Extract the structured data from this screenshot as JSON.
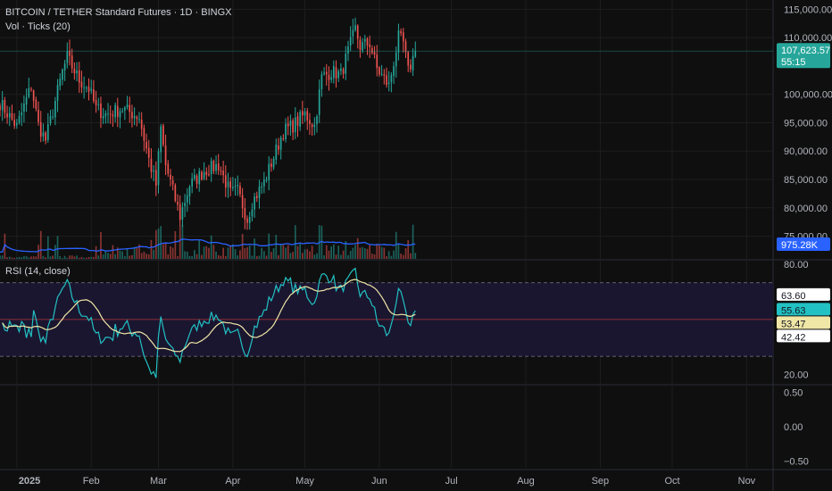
{
  "header": {
    "symbol_title": "BITCOIN / TETHER Standard Futures · 1D · BINGX",
    "volume_legend": "Vol · Ticks (20)",
    "rsi_legend": "RSI (14, close)"
  },
  "colors": {
    "background": "#0f0f0f",
    "up": "#26a69a",
    "down": "#ef5350",
    "volume_ma": "#2962ff",
    "rsi_line": "#22c1c3",
    "rsi_ma": "#f0e6a6",
    "rsi_band_fill": "#1a1630",
    "rsi_mid": "#b2373a",
    "grid": "#1e1e1e"
  },
  "chart_data": [
    {
      "type": "candlestick",
      "x_tick_labels": [
        "2025",
        "Feb",
        "Mar",
        "Apr",
        "May",
        "Jun",
        "Jul",
        "Aug",
        "Sep",
        "Oct",
        "Nov"
      ],
      "y_tick_labels": [
        "115,000.00",
        "110,000.00",
        "100,000.00",
        "95,000.00",
        "90,000.00",
        "85,000.00",
        "80,000.00",
        "75,000.00"
      ],
      "y_ticks": [
        115000,
        110000,
        100000,
        95000,
        90000,
        85000,
        80000,
        75000
      ],
      "ylim": [
        71000,
        116000
      ],
      "x_tick_dates": [
        "2025-01-01",
        "2025-02-01",
        "2025-03-01",
        "2025-04-01",
        "2025-05-01",
        "2025-06-01",
        "2025-07-01",
        "2025-08-01",
        "2025-09-01",
        "2025-10-01",
        "2025-11-01"
      ],
      "xlim": [
        "2024-12-25",
        "2025-11-12"
      ],
      "last_price": 107623.57,
      "last_price_label": "107,623.57",
      "countdown_label": "55:15",
      "close_path": [
        [
          "2024-12-25",
          98500
        ],
        [
          "2025-01-01",
          94300
        ],
        [
          "2025-01-07",
          101500
        ],
        [
          "2025-01-10",
          94600
        ],
        [
          "2025-01-13",
          91900
        ],
        [
          "2025-01-20",
          104000
        ],
        [
          "2025-01-22",
          106500
        ],
        [
          "2025-01-27",
          102500
        ],
        [
          "2025-01-31",
          101000
        ],
        [
          "2025-02-03",
          97500
        ],
        [
          "2025-02-07",
          96500
        ],
        [
          "2025-02-14",
          97500
        ],
        [
          "2025-02-21",
          96000
        ],
        [
          "2025-02-25",
          88500
        ],
        [
          "2025-02-28",
          84000
        ],
        [
          "2025-03-02",
          94000
        ],
        [
          "2025-03-04",
          87500
        ],
        [
          "2025-03-10",
          78500
        ],
        [
          "2025-03-14",
          84000
        ],
        [
          "2025-03-20",
          86500
        ],
        [
          "2025-03-26",
          87500
        ],
        [
          "2025-03-31",
          82500
        ],
        [
          "2025-04-03",
          83000
        ],
        [
          "2025-04-07",
          78000
        ],
        [
          "2025-04-09",
          81000
        ],
        [
          "2025-04-14",
          84500
        ],
        [
          "2025-04-22",
          93500
        ],
        [
          "2025-04-26",
          94500
        ],
        [
          "2025-05-01",
          96500
        ],
        [
          "2025-05-05",
          94500
        ],
        [
          "2025-05-08",
          103000
        ],
        [
          "2025-05-12",
          104000
        ],
        [
          "2025-05-16",
          103500
        ],
        [
          "2025-05-22",
          111500
        ],
        [
          "2025-05-24",
          108500
        ],
        [
          "2025-05-28",
          109000
        ],
        [
          "2025-05-31",
          104500
        ],
        [
          "2025-06-05",
          101500
        ],
        [
          "2025-06-09",
          110000
        ],
        [
          "2025-06-11",
          109000
        ],
        [
          "2025-06-13",
          104000
        ],
        [
          "2025-06-16",
          107600
        ]
      ],
      "volume_label": "975.28K"
    },
    {
      "type": "line",
      "title": "RSI (14, close)",
      "y_tick_labels": [
        "80.00",
        "20.00"
      ],
      "ylim": [
        15,
        82
      ],
      "upper_band": 70,
      "middle_band": 50,
      "lower_band": 30,
      "rsi_value_label": "55.63",
      "ma_value_label": "53.47",
      "band_high_label": "63.60",
      "band_low_label": "42.42"
    },
    {
      "type": "line",
      "y_tick_labels": [
        "0.50",
        "0.00",
        "−0.50"
      ],
      "ylim": [
        -0.6,
        0.6
      ]
    }
  ]
}
